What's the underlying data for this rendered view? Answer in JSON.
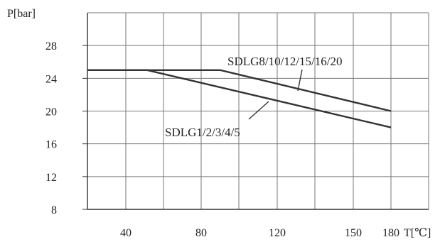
{
  "chart_data": {
    "type": "line",
    "title": "",
    "ylabel": "P[bar]",
    "xlabel": "T[℃]",
    "x_ticks": [
      40,
      80,
      120,
      150,
      180
    ],
    "x_tick_labels": [
      "40",
      "80",
      "120",
      "150",
      "180"
    ],
    "y_ticks": [
      8,
      12,
      16,
      20,
      24,
      28
    ],
    "y_tick_labels": [
      "8",
      "12",
      "16",
      "20",
      "24",
      "28"
    ],
    "xlim": [
      20,
      180
    ],
    "ylim": [
      8,
      32
    ],
    "grid": true,
    "legend": "none",
    "series": [
      {
        "name": "SDLG8/10/12/15/16/20",
        "x": [
          20,
          90,
          180
        ],
        "y": [
          25,
          25,
          20
        ]
      },
      {
        "name": "SDLG1/2/3/4/5",
        "x": [
          20,
          50,
          180
        ],
        "y": [
          25,
          25,
          18
        ]
      }
    ],
    "colors": {
      "line": "#333333",
      "grid": "#777777",
      "text": "#222222"
    }
  }
}
